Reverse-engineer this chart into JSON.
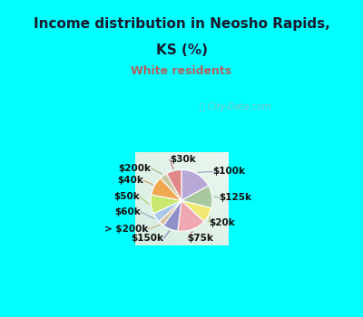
{
  "title_line1": "Income distribution in Neosho Rapids,",
  "title_line2": "KS (%)",
  "subtitle": "White residents",
  "title_color": "#1a1a2e",
  "subtitle_color": "#b06060",
  "bg_color": "#00ffff",
  "watermark": "ⓘ City-Data.com",
  "labels": [
    "$100k",
    "$125k",
    "$20k",
    "$75k",
    "$150k",
    "> $200k",
    "$60k",
    "$50k",
    "$40k",
    "$200k",
    "$30k"
  ],
  "values": [
    17,
    12,
    8,
    15,
    8,
    3,
    5,
    10,
    10,
    4,
    8
  ],
  "colors": [
    "#b8a8d8",
    "#a8c8a0",
    "#f0e870",
    "#f0a8b0",
    "#9090c8",
    "#d8c0a0",
    "#a8c8e8",
    "#c8e870",
    "#f0a850",
    "#c8c8a0",
    "#e08888"
  ]
}
